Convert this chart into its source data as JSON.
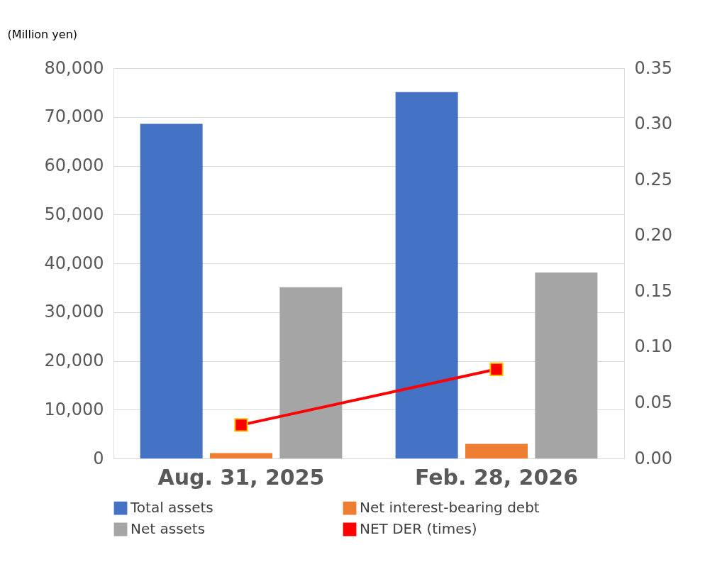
{
  "chart_data": {
    "type": "bar",
    "ylabel": "(Million yen)",
    "categories": [
      "Aug. 31, 2025",
      "Feb. 28, 2026"
    ],
    "series": [
      {
        "name": "Total assets",
        "color": "#4472c4",
        "values": [
          68600,
          75100
        ]
      },
      {
        "name": "Net interest-bearing debt",
        "color": "#ed7d31",
        "values": [
          1100,
          3000
        ]
      },
      {
        "name": "Net assets",
        "color": "#a5a5a5",
        "values": [
          35100,
          38100
        ]
      },
      {
        "name": "NET DER (times)",
        "type": "line",
        "axis": "y2",
        "color": "#ff0000",
        "values": [
          0.03,
          0.08
        ],
        "marker": "square"
      }
    ],
    "ylim": [
      0,
      80000
    ],
    "yticks": [
      0,
      {
        "value": 10000,
        "label": "10,000"
      },
      {
        "value": 20000,
        "label": "20,000"
      },
      {
        "value": 30000,
        "label": "30,000"
      },
      {
        "value": 40000,
        "label": "40,000"
      },
      {
        "value": 50000,
        "label": "50,000"
      },
      {
        "value": 60000,
        "label": "60,000"
      },
      {
        "value": 70000,
        "label": "70,000"
      },
      {
        "value": 80000,
        "label": "80,000"
      }
    ],
    "y2lim": [
      0,
      0.35
    ],
    "y2ticks": [
      {
        "value": 0,
        "label": "0.00"
      },
      {
        "value": 0.05,
        "label": "0.05"
      },
      {
        "value": 0.1,
        "label": "0.10"
      },
      {
        "value": 0.15,
        "label": "0.15"
      },
      {
        "value": 0.2,
        "label": "0.20"
      },
      {
        "value": 0.25,
        "label": "0.25"
      },
      {
        "value": 0.3,
        "label": "0.30"
      },
      {
        "value": 0.35,
        "label": "0.35"
      }
    ],
    "grid": "y",
    "legend": "bottom"
  }
}
